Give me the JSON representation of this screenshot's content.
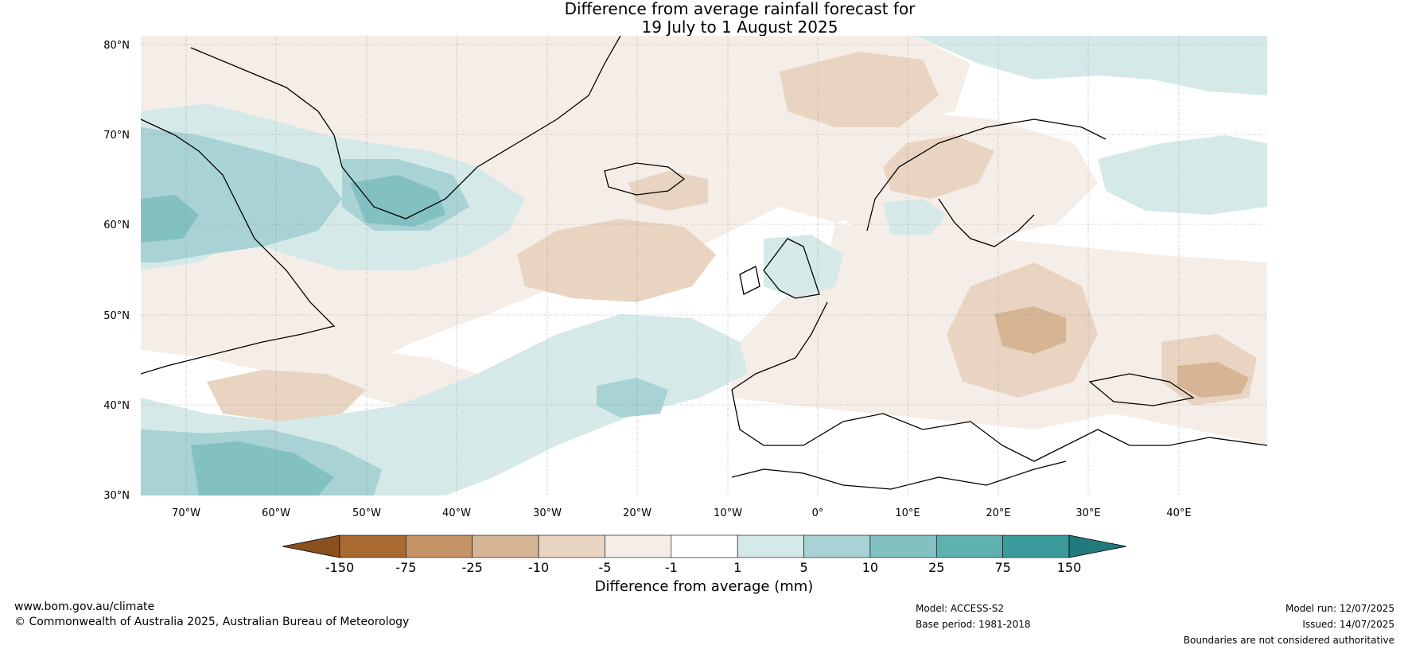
{
  "title_line1": "Difference from average rainfall forecast for",
  "title_line2": "19 July to 1 August 2025",
  "lat_labels": [
    "80°N",
    "70°N",
    "60°N",
    "50°N",
    "40°N",
    "30°N"
  ],
  "lon_labels": [
    "70°W",
    "60°W",
    "50°W",
    "40°W",
    "30°W",
    "20°W",
    "10°W",
    "0°",
    "10°E",
    "20°E",
    "30°E",
    "40°E"
  ],
  "colorbar": {
    "label": "Difference from average (mm)",
    "ticks": [
      "-150",
      "-75",
      "-25",
      "-10",
      "-5",
      "-1",
      "1",
      "5",
      "10",
      "25",
      "75",
      "150"
    ],
    "colors": [
      "#a86a30",
      "#c59466",
      "#d6b594",
      "#e8d4c1",
      "#f5ede7",
      "#ffffff",
      "#d5e9e9",
      "#a8d2d3",
      "#83c0c1",
      "#5eb0b1",
      "#3a9a9c",
      "#227a7c"
    ],
    "extend_low_color": "#8a5020",
    "extend_high_color": "#227a7c"
  },
  "footer": {
    "website": "www.bom.gov.au/climate",
    "copyright": "© Commonwealth of Australia 2025, Australian Bureau of Meteorology",
    "model": "Model: ACCESS-S2",
    "base_period": "Base period: 1981-2018",
    "model_run": "Model run: 12/07/2025",
    "issued": "Issued: 14/07/2025",
    "boundaries_note": "Boundaries are not considered authoritative"
  },
  "colors": {
    "dry_light": "#f5ede7",
    "dry_mid": "#e8d4c1",
    "dry_strong": "#d6b594",
    "dry_stronger": "#c59466",
    "wet_light": "#d5e9e9",
    "wet_mid": "#a8d2d3",
    "wet_strong": "#83c0c1",
    "wet_stronger": "#5eb0b1"
  }
}
